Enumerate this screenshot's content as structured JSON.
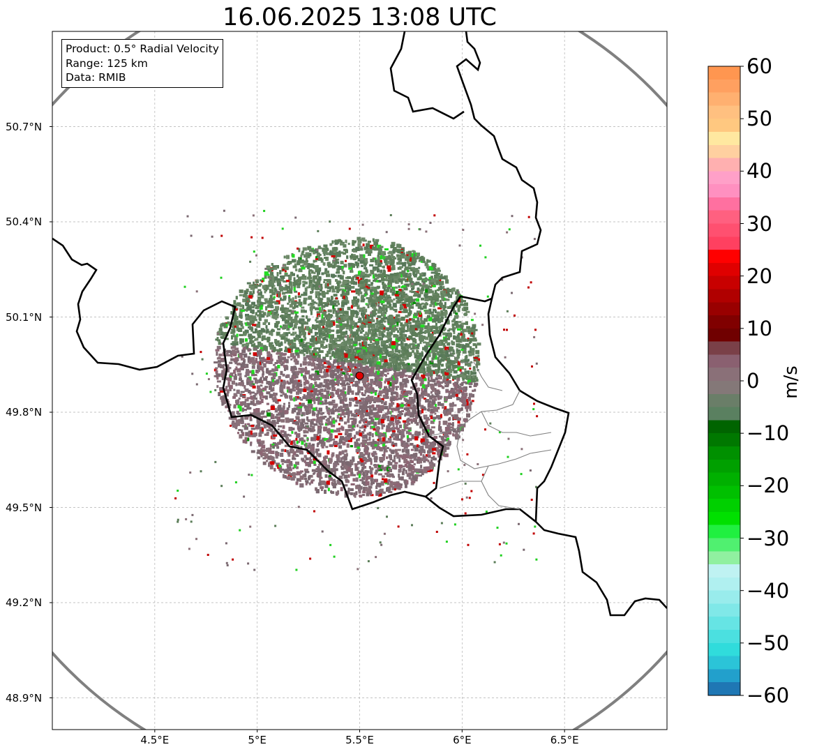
{
  "title": "16.06.2025 13:08 UTC",
  "info_box": {
    "product": "Product: 0.5° Radial Velocity",
    "range": "Range: 125 km",
    "data": "Data: RMIB"
  },
  "map": {
    "lon_range": [
      4.0,
      7.0
    ],
    "lat_range": [
      48.8,
      51.0
    ],
    "radar_site": {
      "lon": 5.5,
      "lat": 49.915
    },
    "range_ring_color": "#808080",
    "border_color": "#000000"
  },
  "lat_ticks": [
    {
      "value": 50.7,
      "label": "50.7°N"
    },
    {
      "value": 50.4,
      "label": "50.4°N"
    },
    {
      "value": 50.1,
      "label": "50.1°N"
    },
    {
      "value": 49.8,
      "label": "49.8°N"
    },
    {
      "value": 49.5,
      "label": "49.5°N"
    },
    {
      "value": 49.2,
      "label": "49.2°N"
    },
    {
      "value": 48.9,
      "label": "48.9°N"
    }
  ],
  "lon_ticks": [
    {
      "value": 4.5,
      "label": "4.5°E"
    },
    {
      "value": 5.0,
      "label": "5°E"
    },
    {
      "value": 5.5,
      "label": "5.5°E"
    },
    {
      "value": 6.0,
      "label": "6°E"
    },
    {
      "value": 6.5,
      "label": "6.5°E"
    }
  ],
  "colorbar": {
    "label": "m/s",
    "min": -60,
    "max": 60,
    "ticks": [
      {
        "value": 60,
        "label": "60"
      },
      {
        "value": 50,
        "label": "50"
      },
      {
        "value": 40,
        "label": "40"
      },
      {
        "value": 30,
        "label": "30"
      },
      {
        "value": 20,
        "label": "20"
      },
      {
        "value": 10,
        "label": "10"
      },
      {
        "value": 0,
        "label": "0"
      },
      {
        "value": -10,
        "label": "−10"
      },
      {
        "value": -20,
        "label": "−20"
      },
      {
        "value": -30,
        "label": "−30"
      },
      {
        "value": -40,
        "label": "−40"
      },
      {
        "value": -50,
        "label": "−50"
      },
      {
        "value": -60,
        "label": "−60"
      }
    ],
    "colors": [
      "#1f77b4",
      "#22a0cc",
      "#2bc4d8",
      "#30dcdc",
      "#4be0e0",
      "#66e4e4",
      "#80e8e8",
      "#99ecec",
      "#b0f0f0",
      "#bff2f2",
      "#90f0a0",
      "#50f070",
      "#20f040",
      "#00e000",
      "#00d000",
      "#00c000",
      "#00b000",
      "#00a000",
      "#009000",
      "#007800",
      "#006400",
      "#5a8060",
      "#6a7e68",
      "#847878",
      "#8a7078",
      "#8a6070",
      "#7a4048",
      "#700000",
      "#800000",
      "#990000",
      "#b00000",
      "#c80000",
      "#e00000",
      "#ff0000",
      "#ff4060",
      "#ff5070",
      "#ff6080",
      "#ff70a0",
      "#ff90c0",
      "#ffa0c8",
      "#ffb0b0",
      "#ffd0a0",
      "#ffe8a0",
      "#ffc880",
      "#ffc080",
      "#ffb070",
      "#ffa060",
      "#ff9650"
    ]
  }
}
